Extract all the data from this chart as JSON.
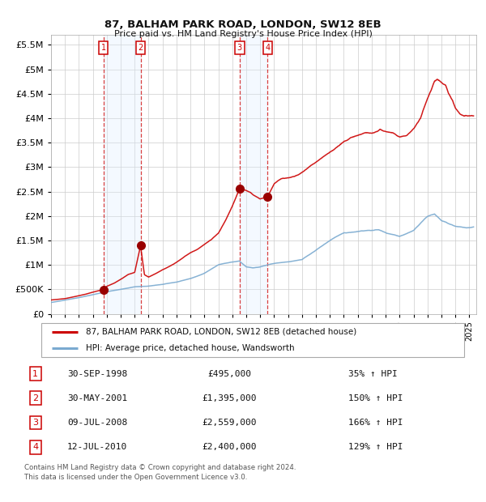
{
  "title": "87, BALHAM PARK ROAD, LONDON, SW12 8EB",
  "subtitle": "Price paid vs. HM Land Registry's House Price Index (HPI)",
  "ylim": [
    0,
    5700000
  ],
  "yticks": [
    0,
    500000,
    1000000,
    1500000,
    2000000,
    2500000,
    3000000,
    3500000,
    4000000,
    4500000,
    5000000,
    5500000
  ],
  "xlim_start": 1995.0,
  "xlim_end": 2025.5,
  "xtick_years": [
    1995,
    1996,
    1997,
    1998,
    1999,
    2000,
    2001,
    2002,
    2003,
    2004,
    2005,
    2006,
    2007,
    2008,
    2009,
    2010,
    2011,
    2012,
    2013,
    2014,
    2015,
    2016,
    2017,
    2018,
    2019,
    2020,
    2021,
    2022,
    2023,
    2024,
    2025
  ],
  "legend_label_red": "87, BALHAM PARK ROAD, LONDON, SW12 8EB (detached house)",
  "legend_label_blue": "HPI: Average price, detached house, Wandsworth",
  "footnote1": "Contains HM Land Registry data © Crown copyright and database right 2024.",
  "footnote2": "This data is licensed under the Open Government Licence v3.0.",
  "sale_points": [
    {
      "num": 1,
      "date": "30-SEP-1998",
      "price": 495000,
      "year": 1998.75
    },
    {
      "num": 2,
      "date": "30-MAY-2001",
      "price": 1395000,
      "year": 2001.42
    },
    {
      "num": 3,
      "date": "09-JUL-2008",
      "price": 2559000,
      "year": 2008.52
    },
    {
      "num": 4,
      "date": "12-JUL-2010",
      "price": 2400000,
      "year": 2010.53
    }
  ],
  "sale_info": [
    {
      "num": 1,
      "date": "30-SEP-1998",
      "price": "£495,000",
      "pct": "35% ↑ HPI"
    },
    {
      "num": 2,
      "date": "30-MAY-2001",
      "price": "£1,395,000",
      "pct": "150% ↑ HPI"
    },
    {
      "num": 3,
      "date": "09-JUL-2008",
      "price": "£2,559,000",
      "pct": "166% ↑ HPI"
    },
    {
      "num": 4,
      "date": "12-JUL-2010",
      "price": "£2,400,000",
      "pct": "129% ↑ HPI"
    }
  ],
  "blue_anchors_x": [
    1995.0,
    1996.0,
    1997.0,
    1998.0,
    1999.0,
    2000.0,
    2001.0,
    2002.0,
    2003.0,
    2004.0,
    2005.0,
    2006.0,
    2007.0,
    2008.0,
    2008.5,
    2009.0,
    2009.5,
    2010.0,
    2011.0,
    2012.0,
    2013.0,
    2014.0,
    2015.0,
    2016.0,
    2017.0,
    2018.0,
    2018.5,
    2019.0,
    2020.0,
    2021.0,
    2022.0,
    2022.5,
    2023.0,
    2024.0,
    2025.0,
    2025.3
  ],
  "blue_anchors_y": [
    230000,
    280000,
    330000,
    390000,
    450000,
    500000,
    550000,
    565000,
    600000,
    650000,
    720000,
    830000,
    1000000,
    1060000,
    1080000,
    960000,
    940000,
    960000,
    1030000,
    1060000,
    1100000,
    1300000,
    1500000,
    1650000,
    1680000,
    1700000,
    1720000,
    1660000,
    1580000,
    1700000,
    2000000,
    2050000,
    1900000,
    1780000,
    1750000,
    1760000
  ],
  "red_anchors_x": [
    1995.0,
    1996.0,
    1997.0,
    1997.5,
    1998.0,
    1998.75,
    1999.0,
    1999.5,
    2000.0,
    2000.5,
    2001.0,
    2001.42,
    2001.7,
    2002.0,
    2002.5,
    2003.0,
    2003.5,
    2004.0,
    2004.5,
    2005.0,
    2005.5,
    2006.0,
    2006.5,
    2007.0,
    2007.5,
    2008.0,
    2008.52,
    2008.8,
    2009.0,
    2009.3,
    2009.5,
    2010.0,
    2010.53,
    2011.0,
    2011.5,
    2012.0,
    2012.5,
    2013.0,
    2013.5,
    2014.0,
    2014.5,
    2015.0,
    2015.5,
    2016.0,
    2016.5,
    2017.0,
    2017.5,
    2018.0,
    2018.3,
    2018.6,
    2019.0,
    2019.5,
    2020.0,
    2020.5,
    2021.0,
    2021.5,
    2022.0,
    2022.3,
    2022.5,
    2022.7,
    2023.0,
    2023.3,
    2023.5,
    2023.8,
    2024.0,
    2024.3,
    2024.6,
    2025.0,
    2025.3
  ],
  "red_anchors_y": [
    280000,
    310000,
    370000,
    400000,
    440000,
    495000,
    560000,
    620000,
    700000,
    800000,
    850000,
    1395000,
    800000,
    750000,
    820000,
    900000,
    970000,
    1050000,
    1150000,
    1250000,
    1320000,
    1420000,
    1520000,
    1650000,
    1900000,
    2200000,
    2559000,
    2540000,
    2520000,
    2480000,
    2430000,
    2350000,
    2400000,
    2650000,
    2750000,
    2780000,
    2820000,
    2900000,
    3000000,
    3100000,
    3200000,
    3300000,
    3400000,
    3520000,
    3600000,
    3650000,
    3700000,
    3680000,
    3720000,
    3780000,
    3720000,
    3680000,
    3600000,
    3650000,
    3800000,
    4000000,
    4400000,
    4600000,
    4780000,
    4820000,
    4750000,
    4680000,
    4500000,
    4350000,
    4200000,
    4100000,
    4050000,
    4050000,
    4050000
  ],
  "red_line_color": "#cc0000",
  "blue_line_color": "#7aaad0",
  "shade_color": "#ddeeff",
  "dot_color": "#990000",
  "background_color": "#ffffff",
  "grid_color": "#cccccc"
}
